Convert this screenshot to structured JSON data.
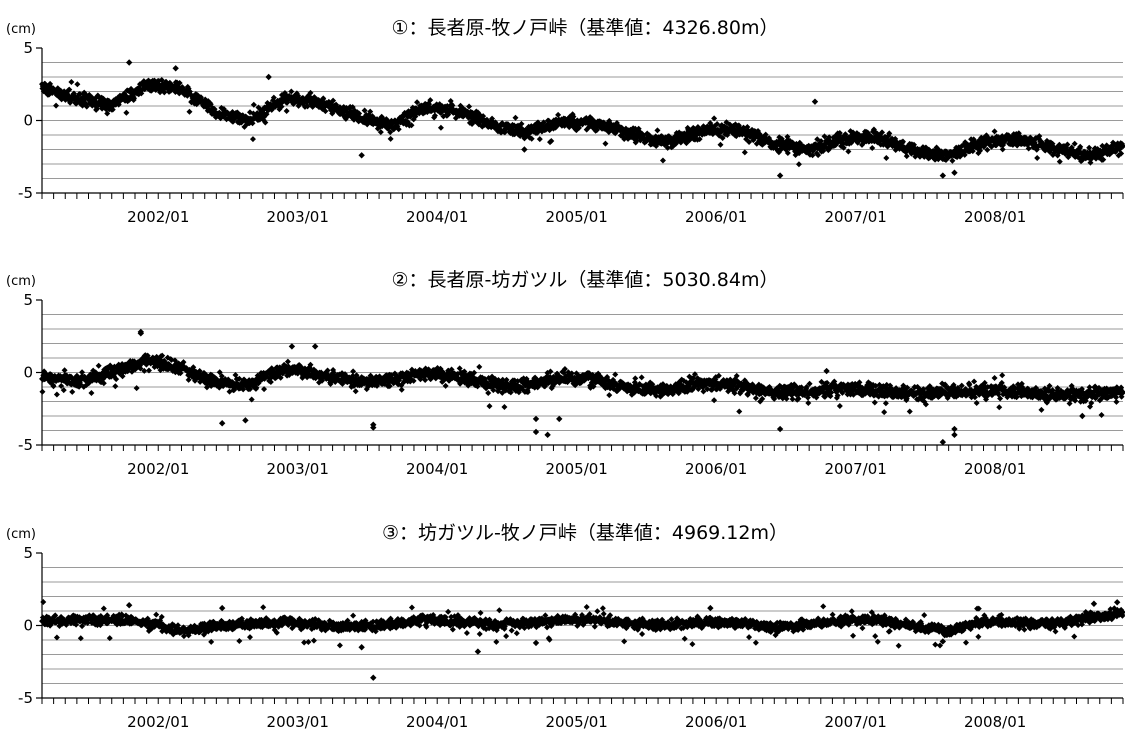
{
  "chart_data": [
    {
      "type": "scatter",
      "title": "①：長者原-牧ノ戸峠（基準値：4326.80m）",
      "ylabel": "(cm)",
      "ylim": [
        -5,
        5
      ],
      "yticks": [
        5,
        0,
        -5
      ],
      "xlim": [
        "2001/03",
        "2008/12"
      ],
      "xticks": [
        "2002/01",
        "2003/01",
        "2004/01",
        "2005/01",
        "2006/01",
        "2007/01",
        "2008/01"
      ],
      "marker_color": "#000000",
      "grid": true,
      "trend": [
        [
          "2001/03",
          2.3
        ],
        [
          "2001/06",
          1.5
        ],
        [
          "2001/09",
          1.0
        ],
        [
          "2001/12",
          2.5
        ],
        [
          "2002/03",
          2.2
        ],
        [
          "2002/06",
          0.6
        ],
        [
          "2002/09",
          0.0
        ],
        [
          "2002/12",
          1.6
        ],
        [
          "2003/03",
          1.2
        ],
        [
          "2003/06",
          0.3
        ],
        [
          "2003/09",
          -0.4
        ],
        [
          "2003/12",
          0.9
        ],
        [
          "2004/03",
          0.6
        ],
        [
          "2004/06",
          -0.4
        ],
        [
          "2004/09",
          -0.8
        ],
        [
          "2004/12",
          0.0
        ],
        [
          "2005/03",
          -0.3
        ],
        [
          "2005/06",
          -1.0
        ],
        [
          "2005/09",
          -1.5
        ],
        [
          "2005/12",
          -0.6
        ],
        [
          "2006/03",
          -0.7
        ],
        [
          "2006/06",
          -1.6
        ],
        [
          "2006/09",
          -2.0
        ],
        [
          "2006/12",
          -1.2
        ],
        [
          "2007/03",
          -1.2
        ],
        [
          "2007/06",
          -2.0
        ],
        [
          "2007/09",
          -2.4
        ],
        [
          "2007/12",
          -1.5
        ],
        [
          "2008/03",
          -1.3
        ],
        [
          "2008/06",
          -1.9
        ],
        [
          "2008/09",
          -2.4
        ],
        [
          "2008/12",
          -1.8
        ]
      ],
      "outliers": [
        [
          "2001/10",
          4.0
        ],
        [
          "2002/02",
          3.6
        ],
        [
          "2002/10",
          3.0
        ],
        [
          "2003/06",
          -2.4
        ],
        [
          "2004/08",
          -2.0
        ],
        [
          "2006/06",
          -3.8
        ],
        [
          "2006/09",
          1.3
        ],
        [
          "2007/08",
          -3.8
        ],
        [
          "2007/09",
          -3.6
        ]
      ]
    },
    {
      "type": "scatter",
      "title": "②：長者原-坊ガツル（基準値：5030.84m）",
      "ylabel": "(cm)",
      "ylim": [
        -5,
        5
      ],
      "yticks": [
        5,
        0,
        -5
      ],
      "xlim": [
        "2001/03",
        "2008/12"
      ],
      "xticks": [
        "2002/01",
        "2003/01",
        "2004/01",
        "2005/01",
        "2006/01",
        "2007/01",
        "2008/01"
      ],
      "marker_color": "#000000",
      "grid": true,
      "trend": [
        [
          "2001/03",
          -0.3
        ],
        [
          "2001/06",
          -0.6
        ],
        [
          "2001/09",
          0.0
        ],
        [
          "2001/12",
          0.8
        ],
        [
          "2002/03",
          0.3
        ],
        [
          "2002/06",
          -0.7
        ],
        [
          "2002/09",
          -0.8
        ],
        [
          "2002/12",
          0.3
        ],
        [
          "2003/03",
          -0.2
        ],
        [
          "2003/06",
          -0.6
        ],
        [
          "2003/09",
          -0.5
        ],
        [
          "2003/12",
          -0.1
        ],
        [
          "2004/03",
          -0.3
        ],
        [
          "2004/06",
          -0.9
        ],
        [
          "2004/09",
          -0.8
        ],
        [
          "2004/12",
          -0.3
        ],
        [
          "2005/03",
          -0.6
        ],
        [
          "2005/06",
          -1.1
        ],
        [
          "2005/09",
          -1.2
        ],
        [
          "2005/12",
          -0.7
        ],
        [
          "2006/03",
          -0.9
        ],
        [
          "2006/06",
          -1.4
        ],
        [
          "2006/09",
          -1.3
        ],
        [
          "2006/12",
          -1.1
        ],
        [
          "2007/03",
          -1.2
        ],
        [
          "2007/06",
          -1.5
        ],
        [
          "2007/09",
          -1.4
        ],
        [
          "2007/12",
          -1.2
        ],
        [
          "2008/03",
          -1.3
        ],
        [
          "2008/06",
          -1.6
        ],
        [
          "2008/09",
          -1.5
        ],
        [
          "2008/12",
          -1.3
        ]
      ],
      "outliers": [
        [
          "2001/11",
          2.8
        ],
        [
          "2001/11",
          2.7
        ],
        [
          "2002/06",
          -3.5
        ],
        [
          "2002/08",
          -3.3
        ],
        [
          "2002/12",
          1.8
        ],
        [
          "2003/02",
          1.8
        ],
        [
          "2003/07",
          -3.8
        ],
        [
          "2003/07",
          -3.6
        ],
        [
          "2004/09",
          -3.2
        ],
        [
          "2004/09",
          -4.1
        ],
        [
          "2004/10",
          -4.3
        ],
        [
          "2004/11",
          -3.2
        ],
        [
          "2006/06",
          -3.9
        ],
        [
          "2006/10",
          0.1
        ],
        [
          "2007/08",
          -4.8
        ],
        [
          "2007/09",
          -3.9
        ],
        [
          "2007/09",
          -4.3
        ],
        [
          "2008/08",
          -3.0
        ]
      ]
    },
    {
      "type": "scatter",
      "title": "③：坊ガツル-牧ノ戸峠（基準値：4969.12m）",
      "ylabel": "(cm)",
      "ylim": [
        -5,
        5
      ],
      "yticks": [
        5,
        0,
        -5
      ],
      "xlim": [
        "2001/03",
        "2008/12"
      ],
      "xticks": [
        "2002/01",
        "2003/01",
        "2004/01",
        "2005/01",
        "2006/01",
        "2007/01",
        "2008/01"
      ],
      "marker_color": "#000000",
      "grid": true,
      "trend": [
        [
          "2001/03",
          0.3
        ],
        [
          "2001/06",
          0.4
        ],
        [
          "2001/09",
          0.4
        ],
        [
          "2001/12",
          0.2
        ],
        [
          "2002/03",
          -0.4
        ],
        [
          "2002/06",
          0.0
        ],
        [
          "2002/09",
          0.1
        ],
        [
          "2002/12",
          0.3
        ],
        [
          "2003/03",
          0.0
        ],
        [
          "2003/06",
          -0.1
        ],
        [
          "2003/09",
          0.1
        ],
        [
          "2003/12",
          0.4
        ],
        [
          "2004/03",
          0.3
        ],
        [
          "2004/06",
          0.1
        ],
        [
          "2004/09",
          0.2
        ],
        [
          "2004/12",
          0.4
        ],
        [
          "2005/03",
          0.4
        ],
        [
          "2005/06",
          0.1
        ],
        [
          "2005/09",
          0.0
        ],
        [
          "2005/12",
          0.2
        ],
        [
          "2006/03",
          0.2
        ],
        [
          "2006/06",
          -0.1
        ],
        [
          "2006/09",
          0.1
        ],
        [
          "2006/12",
          0.4
        ],
        [
          "2007/03",
          0.4
        ],
        [
          "2007/06",
          0.0
        ],
        [
          "2007/09",
          -0.4
        ],
        [
          "2007/12",
          0.3
        ],
        [
          "2008/03",
          0.2
        ],
        [
          "2008/06",
          0.1
        ],
        [
          "2008/09",
          0.5
        ],
        [
          "2008/12",
          0.9
        ]
      ],
      "outliers": [
        [
          "2001/10",
          1.4
        ],
        [
          "2002/06",
          1.2
        ],
        [
          "2003/06",
          -1.5
        ],
        [
          "2003/07",
          -3.6
        ],
        [
          "2004/04",
          -1.8
        ],
        [
          "2004/09",
          -1.2
        ],
        [
          "2005/12",
          1.2
        ],
        [
          "2007/08",
          -1.1
        ],
        [
          "2008/09",
          1.5
        ],
        [
          "2008/11",
          1.6
        ]
      ]
    }
  ]
}
